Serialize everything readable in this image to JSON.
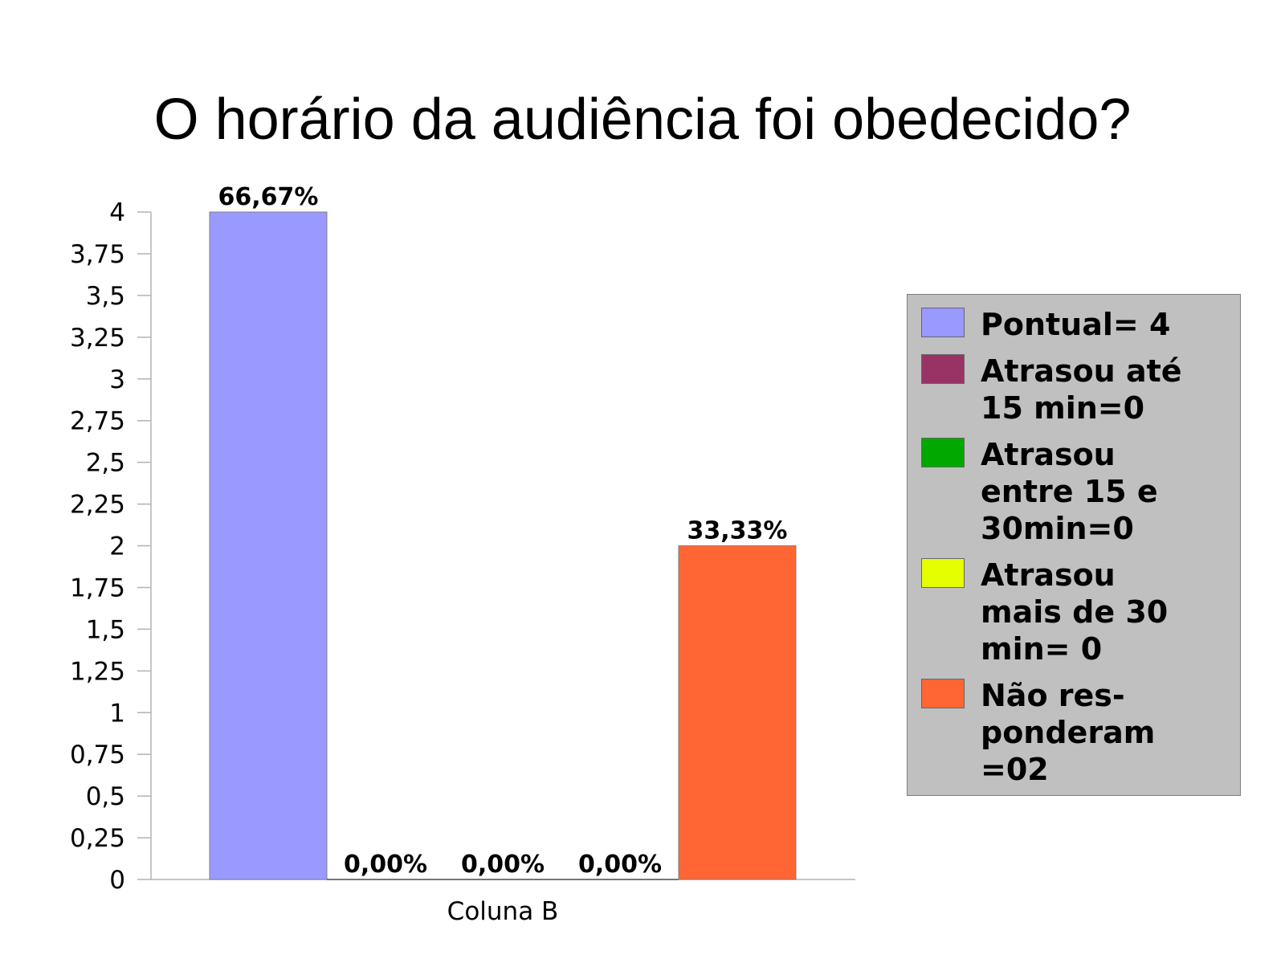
{
  "chart_data": {
    "type": "bar",
    "title": "O horário da audiência foi obedecido?",
    "categories": [
      "Coluna B"
    ],
    "ylim": [
      0,
      4
    ],
    "yticks": [
      "0",
      "0,25",
      "0,5",
      "0,75",
      "1",
      "1,25",
      "1,5",
      "1,75",
      "2",
      "2,25",
      "2,5",
      "2,75",
      "3",
      "3,25",
      "3,5",
      "3,75",
      "4"
    ],
    "series": [
      {
        "name": "Pontual= 4",
        "values": [
          4
        ],
        "label": "66,67%",
        "color": "#9999ff"
      },
      {
        "name": "Atrasou até 15 min=0",
        "values": [
          0
        ],
        "label": "0,00%",
        "color": "#993366"
      },
      {
        "name": "Atrasou entre 15 e 30min=0",
        "values": [
          0
        ],
        "label": "0,00%",
        "color": "#00a800"
      },
      {
        "name": "Atrasou mais de 30 min= 0",
        "values": [
          0
        ],
        "label": "0,00%",
        "color": "#e6ff00"
      },
      {
        "name": "Não res-ponderam =02",
        "values": [
          2
        ],
        "label": "33,33%",
        "color": "#ff6633"
      }
    ],
    "legend": "right",
    "grid": false
  }
}
